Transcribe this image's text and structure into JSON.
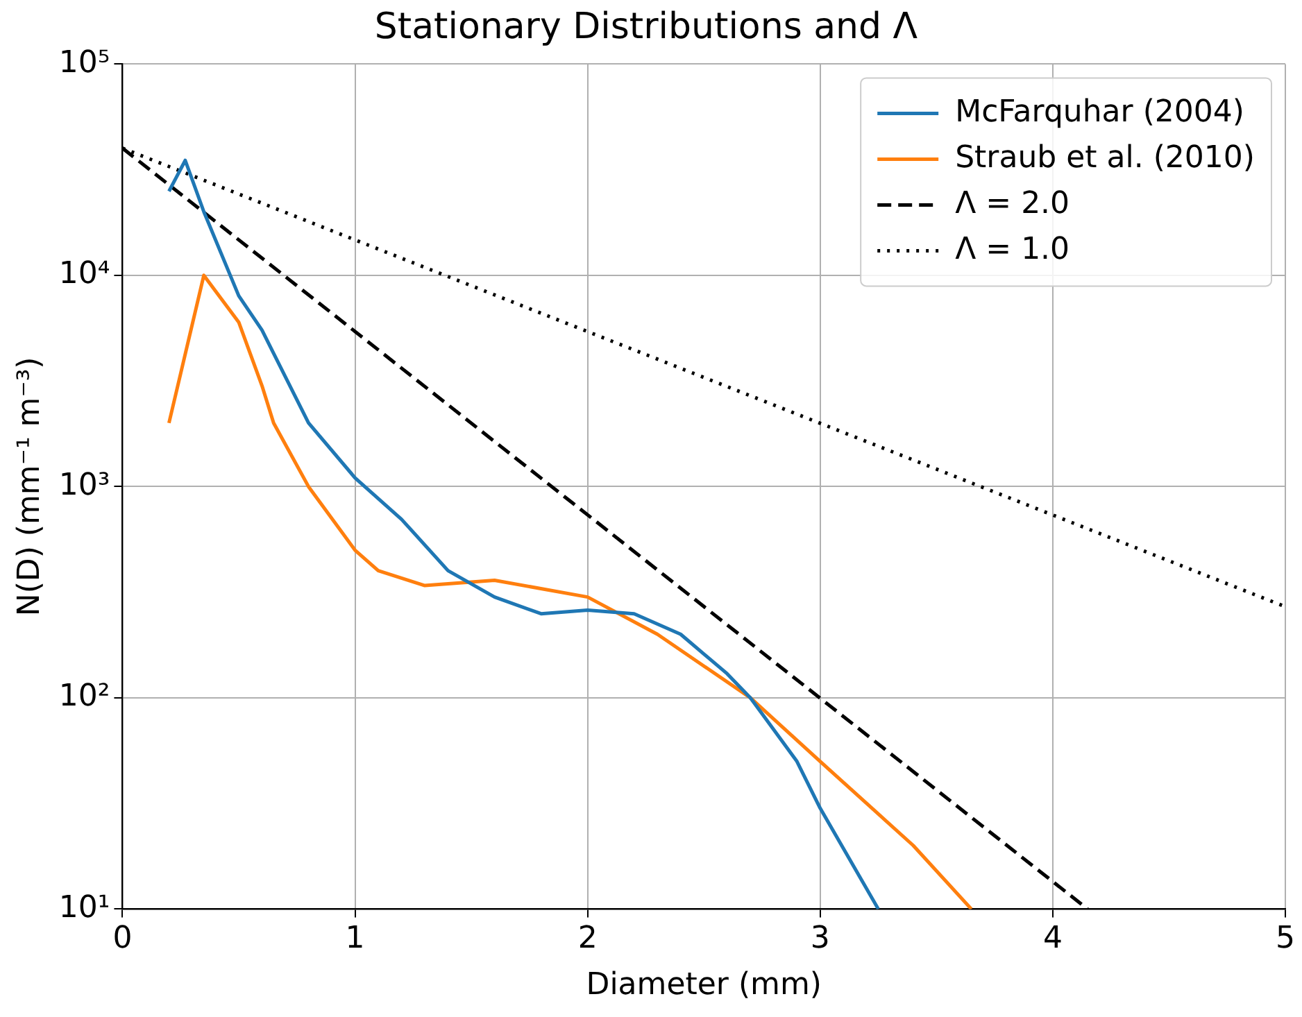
{
  "chart_data": {
    "type": "line",
    "title": "Stationary Distributions and Λ",
    "xlabel": "Diameter (mm)",
    "ylabel": "N(D) (mm⁻¹ m⁻³)",
    "xlim": [
      0,
      5
    ],
    "xticks": [
      0,
      1,
      2,
      3,
      4,
      5
    ],
    "ylim": [
      10,
      100000
    ],
    "yticks": [
      {
        "value": 10,
        "label": "10¹"
      },
      {
        "value": 100,
        "label": "10²"
      },
      {
        "value": 1000,
        "label": "10³"
      },
      {
        "value": 10000,
        "label": "10⁴"
      },
      {
        "value": 100000,
        "label": "10⁵"
      }
    ],
    "log": "y",
    "grid": true,
    "legend": "top right",
    "series": [
      {
        "name": "McFarquhar (2004)",
        "color": "#1f77b4",
        "line_style": "solid",
        "x": [
          0.2,
          0.27,
          0.35,
          0.5,
          0.6,
          0.8,
          1.0,
          1.2,
          1.4,
          1.6,
          1.8,
          2.0,
          2.2,
          2.4,
          2.6,
          2.7,
          2.9,
          3.0,
          3.25
        ],
        "values": [
          25000,
          35000,
          20000,
          8000,
          5500,
          2000,
          1100,
          700,
          400,
          300,
          250,
          260,
          250,
          200,
          130,
          100,
          50,
          30,
          10
        ]
      },
      {
        "name": "Straub et al. (2010)",
        "color": "#ff7f0e",
        "line_style": "solid",
        "x": [
          0.2,
          0.35,
          0.5,
          0.6,
          0.65,
          0.8,
          1.0,
          1.1,
          1.3,
          1.6,
          2.0,
          2.3,
          2.7,
          3.0,
          3.4,
          3.65
        ],
        "values": [
          2000,
          10000,
          6000,
          3000,
          2000,
          1000,
          500,
          400,
          340,
          360,
          300,
          200,
          100,
          50,
          20,
          10
        ]
      },
      {
        "name": "Λ = 2.0",
        "color": "#000000",
        "line_style": "dashed",
        "x": [
          0,
          4.15
        ],
        "values": [
          40000,
          10
        ]
      },
      {
        "name": "Λ = 1.0",
        "color": "#000000",
        "line_style": "dotted",
        "x": [
          0,
          5
        ],
        "values": [
          40000,
          270
        ]
      }
    ]
  }
}
